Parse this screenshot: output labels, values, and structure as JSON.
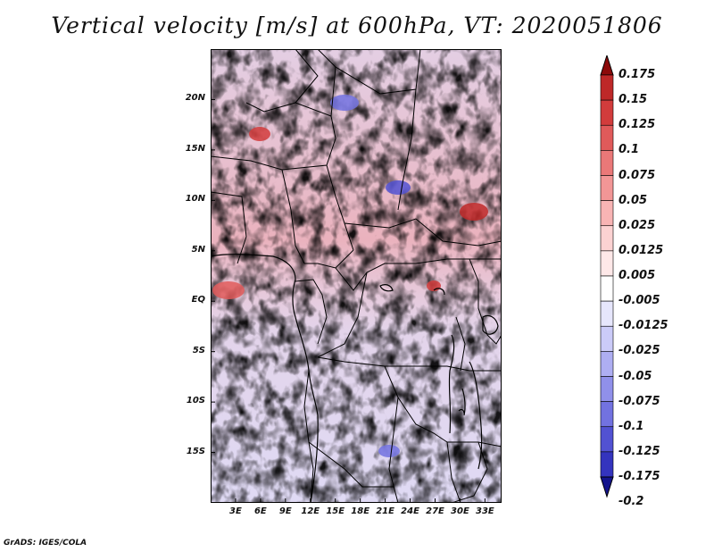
{
  "title": "Vertical velocity [m/s] at 600hPa, VT: 2020051806",
  "footer": "GrADS: IGES/COLA",
  "map": {
    "lat_range": [
      -20,
      25
    ],
    "lon_range": [
      0,
      35
    ],
    "lat_ticks": [
      {
        "value": 20,
        "label": "20N"
      },
      {
        "value": 15,
        "label": "15N"
      },
      {
        "value": 10,
        "label": "10N"
      },
      {
        "value": 5,
        "label": "5N"
      },
      {
        "value": 0,
        "label": "EQ"
      },
      {
        "value": -5,
        "label": "5S"
      },
      {
        "value": -10,
        "label": "10S"
      },
      {
        "value": -15,
        "label": "15S"
      }
    ],
    "lon_ticks": [
      {
        "value": 3,
        "label": "3E"
      },
      {
        "value": 6,
        "label": "6E"
      },
      {
        "value": 9,
        "label": "9E"
      },
      {
        "value": 12,
        "label": "12E"
      },
      {
        "value": 15,
        "label": "15E"
      },
      {
        "value": 18,
        "label": "18E"
      },
      {
        "value": 21,
        "label": "21E"
      },
      {
        "value": 24,
        "label": "24E"
      },
      {
        "value": 27,
        "label": "27E"
      },
      {
        "value": 30,
        "label": "30E"
      },
      {
        "value": 33,
        "label": "33E"
      }
    ]
  },
  "colorbar": {
    "levels": [
      {
        "label": "0.175",
        "color": "#a01414"
      },
      {
        "label": "0.15",
        "color": "#be2828"
      },
      {
        "label": "0.125",
        "color": "#d23c3c"
      },
      {
        "label": "0.1",
        "color": "#e05a5a"
      },
      {
        "label": "0.075",
        "color": "#ea7878"
      },
      {
        "label": "0.05",
        "color": "#f29696"
      },
      {
        "label": "0.025",
        "color": "#f8b4b4"
      },
      {
        "label": "0.0125",
        "color": "#fcd2d2"
      },
      {
        "label": "0.005",
        "color": "#fee8e8"
      },
      {
        "label": "-0.005",
        "color": "#ffffff"
      },
      {
        "label": "-0.0125",
        "color": "#e6e6fc"
      },
      {
        "label": "-0.025",
        "color": "#cbcbf8"
      },
      {
        "label": "-0.05",
        "color": "#aeaef2"
      },
      {
        "label": "-0.075",
        "color": "#9090ea"
      },
      {
        "label": "-0.1",
        "color": "#7272e0"
      },
      {
        "label": "-0.125",
        "color": "#5252d2"
      },
      {
        "label": "-0.175",
        "color": "#3434be"
      },
      {
        "label": "-0.2",
        "color": "#1e1ea6"
      }
    ],
    "top_arrow_color": "#8c0a0a",
    "bottom_arrow_color": "#14148c"
  }
}
